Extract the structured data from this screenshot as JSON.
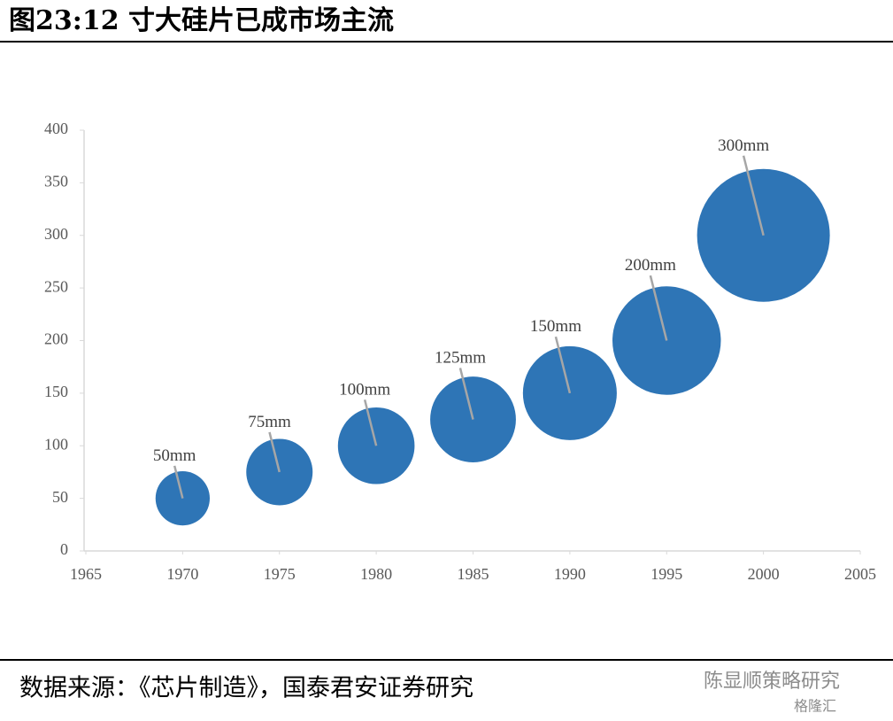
{
  "chart_data": {
    "type": "bubble",
    "title": "图23:12 寸大硅片已成市场主流",
    "x": [
      1970,
      1975,
      1980,
      1985,
      1990,
      1995,
      2000
    ],
    "series": [
      {
        "color": "#2e75b6",
        "values": [
          50,
          75,
          100,
          125,
          150,
          200,
          300
        ],
        "sizes": [
          50,
          75,
          100,
          125,
          150,
          200,
          300
        ],
        "value_labels": [
          "50mm",
          "75mm",
          "100mm",
          "125mm",
          "150mm",
          "200mm",
          "300mm"
        ]
      }
    ],
    "xlim": [
      1965,
      2005
    ],
    "xticks": [
      1965,
      1970,
      1975,
      1980,
      1985,
      1990,
      1995,
      2000,
      2005
    ],
    "ylim": [
      0,
      400
    ],
    "yticks": [
      0,
      50,
      100,
      150,
      200,
      250,
      300,
      350,
      400
    ]
  },
  "source": "数据来源：《芯片制造》，国泰君安证券研究",
  "watermark": {
    "account": "陈显顺策略研究",
    "brand": "格隆汇"
  }
}
